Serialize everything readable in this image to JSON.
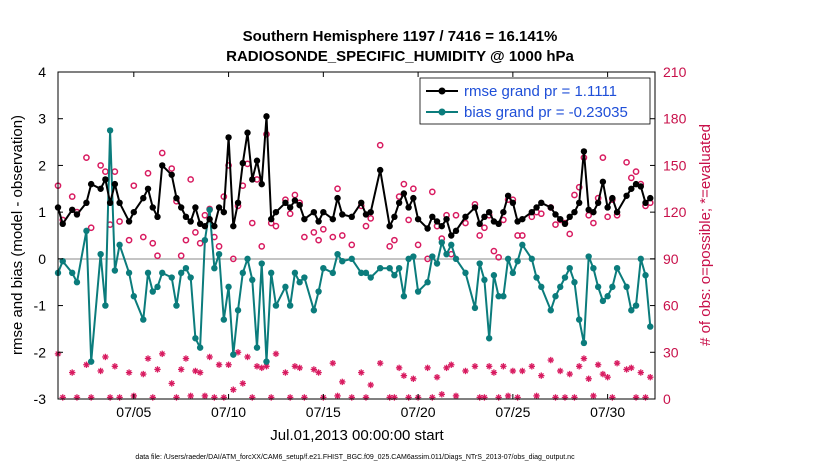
{
  "chart_data": {
    "type": "line",
    "title": "Southern Hemisphere 1197 / 7416 = 16.141%",
    "subtitle": "RADIOSONDE_SPECIFIC_HUMIDITY @ 1000 hPa",
    "xlabel": "Jul.01,2013 00:00:00 start",
    "ylabel": "rmse and bias (model - observation)",
    "ylabel_right": "# of obs: o=possible; *=evaluated",
    "xlim": [
      0.0,
      31.5
    ],
    "ylim": [
      -3,
      4
    ],
    "ylim_right": [
      0,
      210
    ],
    "x_ticks": [
      4,
      9,
      14,
      19,
      24,
      29
    ],
    "x_tick_labels": [
      "07/05",
      "07/10",
      "07/15",
      "07/20",
      "07/25",
      "07/30"
    ],
    "y_ticks": [
      -3,
      -2,
      -1,
      0,
      1,
      2,
      3,
      4
    ],
    "y_tick_labels": [
      "-3",
      "-2",
      "-1",
      "0",
      "1",
      "2",
      "3",
      "4"
    ],
    "y_right_ticks": [
      0,
      30,
      60,
      90,
      120,
      150,
      180,
      210
    ],
    "y_right_tick_labels": [
      "0",
      "30",
      "60",
      "90",
      "120",
      "150",
      "180",
      "210"
    ],
    "colors": {
      "rmse": "#000000",
      "bias": "#0b7c7c",
      "obs": "#d81b60",
      "zero_line": "#b0b0b0",
      "legend_text": "#1f4fd8",
      "right_axis": "#c8104a"
    },
    "legend": [
      "rmse grand pr = 1.1111",
      "bias grand pr = -0.23035"
    ],
    "footnote": "data file: /Users/raeder/DAI/ATM_forcXX/CAM6_setup/f.e21.FHIST_BGC.f09_025.CAM6assim.011/Diags_NTrS_2013-07/obs_diag_output.nc",
    "series": [
      {
        "name": "rmse",
        "x": [
          0.0,
          0.25,
          0.75,
          1.0,
          1.5,
          1.75,
          2.25,
          2.5,
          2.75,
          3.0,
          3.25,
          3.75,
          4.0,
          4.5,
          4.75,
          5.0,
          5.25,
          5.5,
          6.0,
          6.25,
          6.5,
          6.75,
          7.0,
          7.25,
          7.5,
          7.75,
          8.0,
          8.25,
          8.5,
          8.75,
          9.0,
          9.25,
          9.5,
          9.75,
          10.0,
          10.25,
          10.5,
          10.75,
          11.0,
          11.25,
          11.5,
          12.0,
          12.25,
          12.5,
          12.75,
          13.0,
          13.5,
          13.75,
          14.0,
          14.5,
          14.75,
          15.0,
          15.5,
          16.0,
          16.25,
          16.5,
          17.0,
          17.5,
          17.75,
          18.0,
          18.25,
          18.5,
          18.75,
          19.0,
          19.5,
          19.75,
          20.0,
          20.25,
          20.5,
          20.75,
          21.0,
          21.5,
          22.0,
          22.25,
          22.5,
          22.75,
          23.0,
          23.25,
          23.5,
          23.75,
          24.0,
          24.25,
          24.5,
          25.0,
          25.25,
          25.5,
          26.0,
          26.25,
          26.5,
          26.75,
          27.0,
          27.25,
          27.5,
          27.75,
          28.0,
          28.25,
          28.5,
          28.75,
          29.0,
          29.25,
          29.5,
          30.0,
          30.25,
          30.5,
          30.75,
          31.0,
          31.25
        ],
        "values": [
          1.1,
          0.75,
          1.05,
          0.95,
          1.2,
          1.6,
          1.5,
          1.7,
          1.2,
          1.6,
          1.2,
          0.8,
          1.0,
          1.3,
          1.5,
          1.1,
          0.9,
          2.0,
          1.8,
          1.3,
          1.1,
          0.9,
          0.8,
          1.1,
          0.75,
          0.7,
          0.85,
          0.7,
          1.1,
          1.0,
          2.6,
          0.7,
          1.2,
          2.05,
          2.7,
          1.7,
          2.1,
          1.6,
          3.05,
          0.85,
          1.0,
          1.2,
          1.1,
          1.25,
          1.15,
          0.85,
          1.0,
          0.8,
          1.0,
          0.85,
          1.3,
          0.95,
          0.9,
          1.2,
          0.95,
          1.0,
          1.9,
          0.7,
          0.9,
          1.2,
          1.4,
          1.1,
          1.3,
          0.85,
          0.65,
          0.9,
          0.8,
          0.7,
          0.85,
          0.5,
          0.6,
          0.9,
          1.1,
          0.75,
          0.9,
          1.0,
          0.8,
          0.75,
          1.0,
          1.35,
          1.2,
          0.8,
          0.85,
          1.0,
          1.1,
          1.2,
          1.1,
          0.95,
          0.85,
          0.75,
          0.9,
          1.0,
          1.2,
          2.3,
          1.05,
          1.0,
          1.2,
          1.65,
          1.1,
          1.3,
          1.0,
          1.35,
          1.5,
          1.6,
          1.55,
          1.2,
          1.3
        ]
      },
      {
        "name": "bias",
        "x": [
          0.0,
          0.25,
          0.75,
          1.0,
          1.5,
          1.75,
          2.25,
          2.5,
          2.75,
          3.0,
          3.25,
          3.75,
          4.0,
          4.5,
          4.75,
          5.0,
          5.25,
          5.5,
          6.0,
          6.25,
          6.5,
          6.75,
          7.0,
          7.25,
          7.5,
          7.75,
          8.0,
          8.25,
          8.5,
          8.75,
          9.0,
          9.25,
          9.5,
          9.75,
          10.0,
          10.25,
          10.5,
          10.75,
          11.0,
          11.25,
          11.5,
          12.0,
          12.25,
          12.5,
          12.75,
          13.0,
          13.5,
          13.75,
          14.0,
          14.5,
          14.75,
          15.0,
          15.5,
          16.0,
          16.25,
          16.5,
          17.0,
          17.5,
          17.75,
          18.0,
          18.25,
          18.5,
          18.75,
          19.0,
          19.5,
          19.75,
          20.0,
          20.25,
          20.5,
          20.75,
          21.0,
          21.5,
          22.0,
          22.25,
          22.5,
          22.75,
          23.0,
          23.25,
          23.5,
          23.75,
          24.0,
          24.25,
          24.5,
          25.0,
          25.25,
          25.5,
          26.0,
          26.25,
          26.5,
          26.75,
          27.0,
          27.25,
          27.5,
          27.75,
          28.0,
          28.25,
          28.5,
          28.75,
          29.0,
          29.25,
          29.5,
          30.0,
          30.25,
          30.5,
          30.75,
          31.0,
          31.25
        ],
        "values": [
          -0.3,
          -0.05,
          -0.3,
          -0.5,
          0.6,
          -2.2,
          0.1,
          -1.0,
          2.75,
          -0.25,
          0.3,
          -0.3,
          -0.8,
          -1.3,
          -0.3,
          -0.7,
          -0.6,
          -0.3,
          -0.4,
          -1.0,
          -0.3,
          -0.2,
          -0.4,
          -1.7,
          -1.9,
          0.4,
          1.05,
          -0.2,
          0.1,
          -1.3,
          -0.6,
          -2.05,
          -1.1,
          -0.3,
          0.0,
          -0.45,
          -1.9,
          -0.1,
          -2.2,
          -0.3,
          -1.0,
          -0.6,
          -1.0,
          -0.3,
          -0.5,
          -0.4,
          -1.1,
          -0.7,
          -0.2,
          -0.3,
          0.1,
          -0.05,
          0.0,
          -0.3,
          -0.3,
          -0.4,
          -0.2,
          -0.2,
          -0.35,
          -0.2,
          -0.8,
          0.0,
          0.05,
          -0.7,
          -0.5,
          0.05,
          -0.1,
          0.35,
          0.1,
          0.3,
          0.0,
          -0.3,
          -1.05,
          -0.1,
          -0.45,
          -1.7,
          -0.35,
          -0.8,
          -0.8,
          0.0,
          -0.3,
          -0.05,
          0.3,
          0.0,
          -0.4,
          -0.6,
          -1.1,
          -0.8,
          -0.6,
          -0.4,
          -0.2,
          -0.5,
          -1.3,
          -1.8,
          0.05,
          -0.2,
          -0.6,
          -0.9,
          -0.8,
          -0.6,
          -0.2,
          -0.6,
          -1.1,
          -1.0,
          0.0,
          -0.35,
          -1.45
        ]
      },
      {
        "name": "obs possible",
        "x": [
          0.0,
          0.25,
          0.75,
          1.0,
          1.5,
          1.75,
          2.25,
          2.5,
          2.75,
          3.0,
          3.25,
          3.75,
          4.0,
          4.5,
          4.75,
          5.0,
          5.25,
          5.5,
          6.0,
          6.25,
          6.5,
          6.75,
          7.0,
          7.25,
          7.5,
          7.75,
          8.0,
          8.25,
          8.5,
          8.75,
          9.0,
          9.25,
          9.5,
          9.75,
          10.0,
          10.25,
          10.5,
          10.75,
          11.0,
          11.25,
          11.5,
          12.0,
          12.25,
          12.5,
          12.75,
          13.0,
          13.5,
          13.75,
          14.0,
          14.5,
          14.75,
          15.0,
          15.5,
          16.0,
          16.25,
          16.5,
          17.0,
          17.5,
          17.75,
          18.0,
          18.25,
          18.5,
          18.75,
          19.0,
          19.5,
          19.75,
          20.0,
          20.25,
          20.5,
          20.75,
          21.0,
          21.5,
          22.0,
          22.25,
          22.5,
          22.75,
          23.0,
          23.25,
          23.5,
          23.75,
          24.0,
          24.25,
          24.5,
          25.0,
          25.25,
          25.5,
          26.0,
          26.25,
          26.5,
          26.75,
          27.0,
          27.25,
          27.5,
          27.75,
          28.0,
          28.25,
          28.5,
          28.75,
          29.0,
          29.25,
          29.5,
          30.0,
          30.25,
          30.5,
          30.75,
          31.0,
          31.25
        ],
        "values": [
          137,
          115,
          130,
          120,
          155,
          110,
          150,
          146,
          112,
          146,
          114,
          102,
          137,
          104,
          145,
          100,
          92,
          158,
          148,
          127,
          92,
          102,
          141,
          107,
          100,
          118,
          122,
          104,
          98,
          130,
          150,
          90,
          124,
          137,
          151,
          113,
          141,
          98,
          170,
          113,
          111,
          128,
          119,
          131,
          126,
          104,
          107,
          102,
          109,
          104,
          135,
          105,
          99,
          124,
          111,
          116,
          163,
          98,
          102,
          130,
          138,
          115,
          135,
          99,
          90,
          133,
          111,
          103,
          118,
          93,
          118,
          113,
          125,
          105,
          110,
          118,
          95,
          91,
          115,
          128,
          128,
          105,
          105,
          117,
          120,
          119,
          123,
          112,
          115,
          113,
          106,
          131,
          136,
          155,
          118,
          113,
          129,
          155,
          117,
          128,
          118,
          152,
          142,
          146,
          138,
          124,
          126
        ]
      },
      {
        "name": "obs evaluated",
        "x": [
          0.0,
          0.25,
          0.75,
          1.0,
          1.5,
          1.75,
          2.25,
          2.5,
          2.75,
          3.0,
          3.25,
          3.75,
          4.0,
          4.5,
          4.75,
          5.0,
          5.25,
          5.5,
          6.0,
          6.25,
          6.5,
          6.75,
          7.0,
          7.25,
          7.5,
          7.75,
          8.0,
          8.25,
          8.5,
          8.75,
          9.0,
          9.25,
          9.5,
          9.75,
          10.0,
          10.25,
          10.5,
          10.75,
          11.0,
          11.25,
          11.5,
          12.0,
          12.25,
          12.5,
          12.75,
          13.0,
          13.5,
          13.75,
          14.0,
          14.5,
          14.75,
          15.0,
          15.5,
          16.0,
          16.25,
          16.5,
          17.0,
          17.5,
          17.75,
          18.0,
          18.25,
          18.5,
          18.75,
          19.0,
          19.5,
          19.75,
          20.0,
          20.25,
          20.5,
          20.75,
          21.0,
          21.5,
          22.0,
          22.25,
          22.5,
          22.75,
          23.0,
          23.25,
          23.5,
          23.75,
          24.0,
          24.25,
          24.5,
          25.0,
          25.25,
          25.5,
          26.0,
          26.25,
          26.5,
          26.75,
          27.0,
          27.25,
          27.5,
          27.75,
          28.0,
          28.25,
          28.5,
          28.75,
          29.0,
          29.25,
          29.5,
          30.0,
          30.25,
          30.5,
          30.75,
          31.0,
          31.25
        ],
        "values": [
          29,
          1,
          17,
          1,
          22,
          1,
          18,
          27,
          1,
          21,
          1,
          17,
          2,
          16,
          26,
          1,
          19,
          29,
          10,
          1,
          19,
          26,
          2,
          18,
          17,
          2,
          27,
          1,
          22,
          1,
          22,
          6,
          30,
          10,
          27,
          1,
          21,
          20,
          21,
          1,
          29,
          17,
          1,
          21,
          20,
          1,
          19,
          17,
          1,
          23,
          2,
          11,
          1,
          17,
          1,
          9,
          23,
          1,
          1,
          20,
          15,
          1,
          13,
          1,
          20,
          1,
          14,
          3,
          20,
          22,
          2,
          18,
          21,
          1,
          1,
          21,
          17,
          1,
          21,
          2,
          18,
          1,
          18,
          21,
          2,
          15,
          25,
          1,
          18,
          1,
          16,
          1,
          21,
          26,
          13,
          2,
          22,
          16,
          14,
          1,
          23,
          19,
          20,
          1,
          17,
          1,
          14
        ]
      }
    ]
  }
}
